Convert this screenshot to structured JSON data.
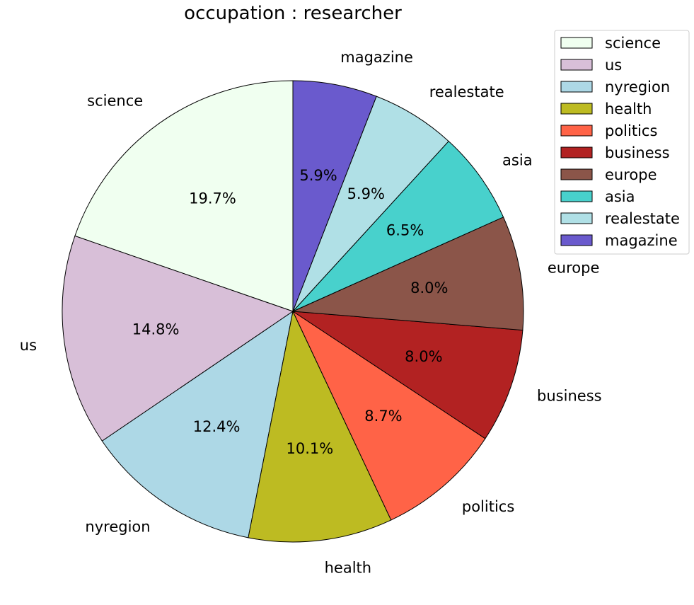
{
  "chart_data": {
    "type": "pie",
    "title": "occupation : researcher",
    "categories": [
      "science",
      "us",
      "nyregion",
      "health",
      "politics",
      "business",
      "europe",
      "asia",
      "realestate",
      "magazine"
    ],
    "values": [
      19.7,
      14.8,
      12.4,
      10.1,
      8.7,
      8.0,
      8.0,
      6.5,
      5.9,
      5.9
    ],
    "value_labels": [
      "19.7%",
      "14.8%",
      "12.4%",
      "10.1%",
      "8.7%",
      "8.0%",
      "8.0%",
      "6.5%",
      "5.9%",
      "5.9%"
    ],
    "colors": [
      "#f0fff0",
      "#d8bfd8",
      "#add8e6",
      "#bdbb22",
      "#ff6347",
      "#b22222",
      "#8b5549",
      "#48d1cc",
      "#b0e0e6",
      "#6a5acd"
    ],
    "start_angle_deg": 90,
    "direction": "counterclockwise",
    "legend": {
      "placement": "top-right",
      "entries": [
        "science",
        "us",
        "nyregion",
        "health",
        "politics",
        "business",
        "europe",
        "asia",
        "realestate",
        "magazine"
      ]
    }
  }
}
